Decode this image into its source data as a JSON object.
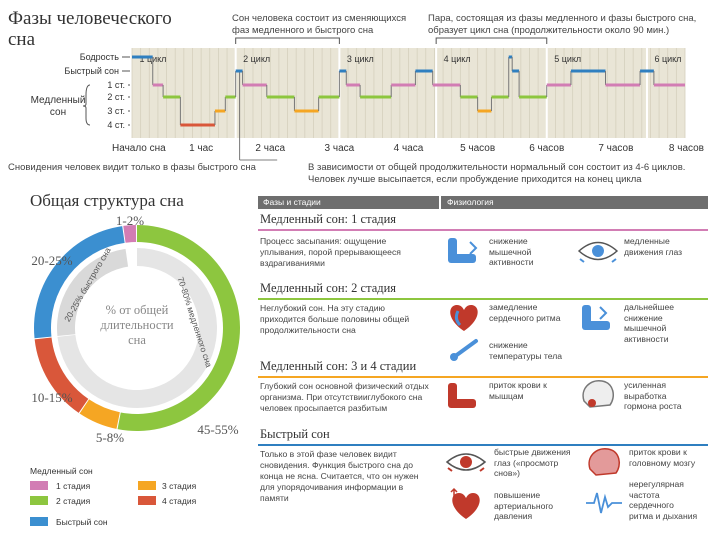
{
  "header": {
    "title_line1": "Фазы человеческого",
    "title_line2": "сна",
    "note_left_1": "Сон человека состоит из сменяющихся",
    "note_left_2": "фаз медленного и быстрого сна",
    "note_right_1": "Пара, состоящая из фазы медленного и фазы быстрого сна,",
    "note_right_2": "образует цикл сна (продолжительности около 90 мин.)"
  },
  "chart_data": [
    {
      "type": "line",
      "title": "Фазы человеческого сна",
      "y_levels": [
        "Бодрость",
        "Быстрый сон",
        "1 ст.",
        "2 ст.",
        "3 ст.",
        "4 ст."
      ],
      "y_group_label": "Медленный сон",
      "x_ticks": [
        "Начало сна",
        "1 час",
        "2 часа",
        "3 часа",
        "4 часа",
        "5 часов",
        "6 часов",
        "7 часов",
        "8 часов"
      ],
      "cycles": [
        "1 цикл",
        "2 цикл",
        "3 цикл",
        "4 цикл",
        "5 цикл",
        "6 цикл"
      ],
      "hypnogram": [
        {
          "t": 0.0,
          "stage": "Бодрость"
        },
        {
          "t": 0.3,
          "stage": "1 ст."
        },
        {
          "t": 0.45,
          "stage": "2 ст."
        },
        {
          "t": 0.7,
          "stage": "4 ст."
        },
        {
          "t": 1.2,
          "stage": "3 ст."
        },
        {
          "t": 1.35,
          "stage": "2 ст."
        },
        {
          "t": 1.5,
          "stage": "Быстрый сон"
        },
        {
          "t": 1.6,
          "stage": "1 ст."
        },
        {
          "t": 1.95,
          "stage": "2 ст."
        },
        {
          "t": 2.35,
          "stage": "3 ст."
        },
        {
          "t": 2.7,
          "stage": "2 ст."
        },
        {
          "t": 3.0,
          "stage": "Быстрый сон"
        },
        {
          "t": 3.1,
          "stage": "1 ст."
        },
        {
          "t": 3.3,
          "stage": "2 ст."
        },
        {
          "t": 3.75,
          "stage": "1 ст."
        },
        {
          "t": 4.1,
          "stage": "Быстрый сон"
        },
        {
          "t": 4.35,
          "stage": "1 ст."
        },
        {
          "t": 4.75,
          "stage": "2 ст."
        },
        {
          "t": 5.0,
          "stage": "3 ст."
        },
        {
          "t": 5.2,
          "stage": "2 ст."
        },
        {
          "t": 5.45,
          "stage": "Бодрость"
        },
        {
          "t": 5.5,
          "stage": "Быстрый сон"
        },
        {
          "t": 5.6,
          "stage": "2 ст."
        },
        {
          "t": 6.0,
          "stage": "1 ст."
        },
        {
          "t": 6.35,
          "stage": "Быстрый сон"
        },
        {
          "t": 6.85,
          "stage": "1 ст."
        },
        {
          "t": 7.35,
          "stage": "Быстрый сон"
        },
        {
          "t": 7.55,
          "stage": "1 ст."
        },
        {
          "t": 8.0,
          "stage": "1 ст."
        }
      ],
      "stage_colors": {
        "Быстрый сон": "#2f7fc0",
        "1 ст.": "#d27db4",
        "2 ст.": "#8dc63f",
        "3 ст.": "#f5a623",
        "4 ст.": "#d9573a"
      }
    },
    {
      "type": "pie",
      "title": "Общая структура сна",
      "center_label": "% от общей длительности сна",
      "slices": [
        {
          "name": "1 стадия",
          "value_label": "1-2%",
          "value": 2,
          "color": "#d27db4"
        },
        {
          "name": "2 стадия",
          "value_label": "45-55%",
          "value": 50,
          "color": "#8dc63f"
        },
        {
          "name": "3 стадия",
          "value_label": "5-8%",
          "value": 6,
          "color": "#f5a623"
        },
        {
          "name": "4 стадия",
          "value_label": "10-15%",
          "value": 13,
          "color": "#d9573a"
        },
        {
          "name": "Быстрый сон",
          "value_label": "20-25%",
          "value": 23,
          "color": "#3b8fd0"
        }
      ],
      "inner_labels": [
        "70-80% медленного сна",
        "20-25% быстрого сна"
      ]
    }
  ],
  "footnotes": {
    "left": "Сновидения человек видит только в фазы быстрого сна",
    "right_1": "В зависимости от общей продолжительности нормальный сон состоит из 4-6 циклов.",
    "right_2": "Человек лучше высыпается, если пробуждение приходится на конец цикла"
  },
  "structure": {
    "title": "Общая структура сна"
  },
  "legend": {
    "title": "Медленный сон",
    "items": [
      "1 стадия",
      "2 стадия",
      "3 стадия",
      "4 стадия",
      "Быстрый сон"
    ]
  },
  "table": {
    "col1": "Фазы и стадии",
    "col2": "Физиология",
    "phases": [
      {
        "title": "Медленный сон: 1 стадия",
        "color": "#d27db4",
        "desc": [
          "Процесс засыпания: ощущение",
          "уплывания, порой прерывающееся",
          "вздрагиваниями"
        ],
        "facts": [
          [
            "снижение",
            "мышечной",
            "активности"
          ],
          [
            "медленные",
            "движения глаз"
          ]
        ]
      },
      {
        "title": "Медленный сон: 2 стадия",
        "color": "#8dc63f",
        "desc": [
          "Неглубокий сон. На эту стадию",
          "приходится больше половины общей",
          "продолжительности сна"
        ],
        "facts": [
          [
            "замедление",
            "сердечного ритма"
          ],
          [
            "дальнейшее",
            "снижение",
            "мышечной",
            "активности"
          ],
          [
            "снижение",
            "температуры тела"
          ]
        ]
      },
      {
        "title": "Медленный сон: 3 и 4 стадии",
        "color": "#f5a623",
        "desc": [
          "Глубокий сон основной физический отдых",
          "организма. При отсутствииглубокого сна",
          "человек просыпается разбитым"
        ],
        "facts": [
          [
            "приток крови к",
            "мышцам"
          ],
          [
            "усиленная",
            "выработка",
            "гормона роста"
          ]
        ]
      },
      {
        "title": "Быстрый сон",
        "color": "#2f7fc0",
        "desc": [
          "Только в этой фазе человек видит",
          "сновидения. Функция быстрого сна до",
          "конца не ясна. Считается, что он нужен",
          "для упорядочивания информации в",
          "памяти"
        ],
        "facts": [
          [
            "быстрые движения",
            "глаз («просмотр",
            "снов»)"
          ],
          [
            "приток крови к",
            "головному мозгу"
          ],
          [
            "повышение",
            "артериального",
            "давления"
          ],
          [
            "нерегулярная",
            "частота",
            "сердечного",
            "ритма и дыхания"
          ]
        ]
      }
    ]
  }
}
